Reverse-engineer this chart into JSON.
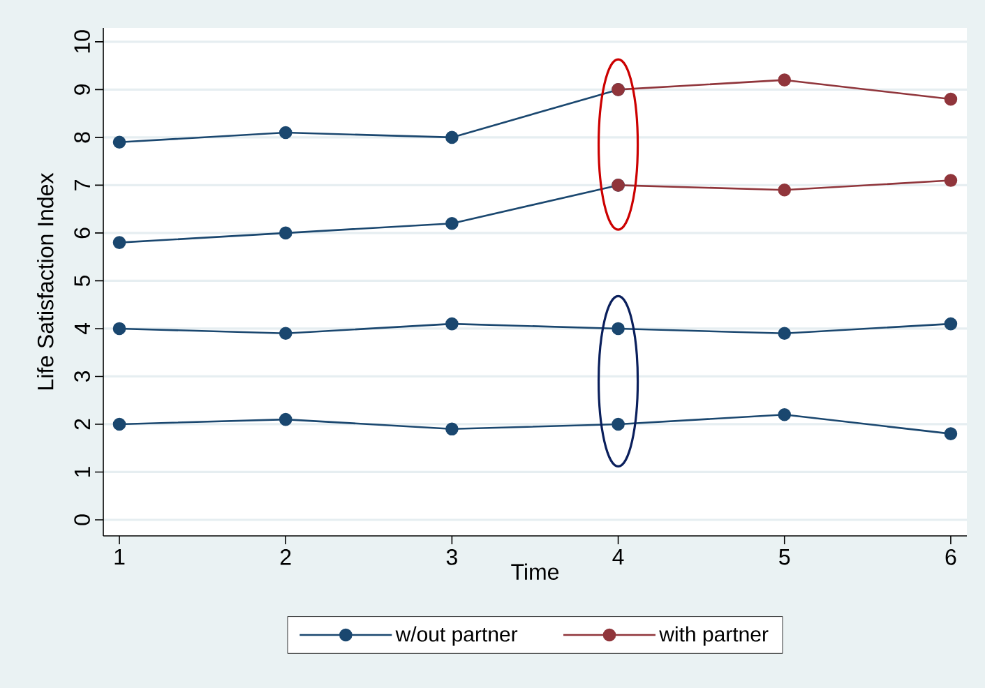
{
  "chart_data": {
    "type": "line",
    "xlabel": "Time",
    "ylabel": "Life Satisfaction Index",
    "xlim": [
      0.9034,
      6.097
    ],
    "ylim": [
      -0.336,
      10.29
    ],
    "xticks": [
      1,
      2,
      3,
      4,
      5,
      6
    ],
    "yticks": [
      0,
      1,
      2,
      3,
      4,
      5,
      6,
      7,
      8,
      9,
      10
    ],
    "grid": "y",
    "legend": "bottom",
    "marker": "circle",
    "line_style": "solid",
    "series": [
      {
        "name": "w/out partner",
        "color": "#1a476f",
        "x": [
          1,
          2,
          3,
          4
        ],
        "values": [
          7.9,
          8.1,
          8.0,
          9.0
        ]
      },
      {
        "name": "with partner",
        "color": "#90353b",
        "x": [
          4,
          5,
          6
        ],
        "values": [
          9.0,
          9.2,
          8.8
        ]
      },
      {
        "color": "#1a476f",
        "x": [
          1,
          2,
          3,
          4
        ],
        "values": [
          5.8,
          6.0,
          6.2,
          7.0
        ]
      },
      {
        "color": "#90353b",
        "x": [
          4,
          5,
          6
        ],
        "values": [
          7.0,
          6.9,
          7.1
        ]
      },
      {
        "color": "#1a476f",
        "x": [
          1,
          2,
          3,
          4,
          5,
          6
        ],
        "values": [
          4.0,
          3.9,
          4.1,
          4.0,
          3.9,
          4.1
        ]
      },
      {
        "color": "#1a476f",
        "x": [
          1,
          2,
          3,
          4,
          5,
          6
        ],
        "values": [
          2.0,
          2.1,
          1.9,
          2.0,
          2.2,
          1.8
        ]
      }
    ]
  }
}
